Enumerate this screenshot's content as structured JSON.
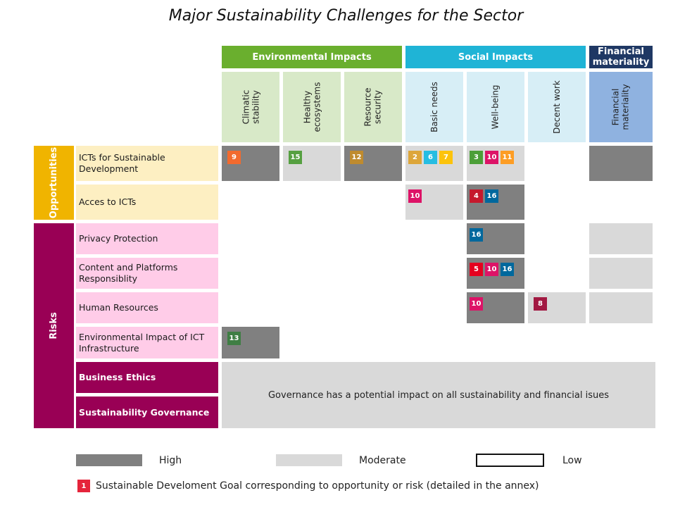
{
  "title": "Major Sustainability Challenges for the Sector",
  "colors": {
    "high": "#808080",
    "moderate": "#d9d9d9",
    "environmental": "#6aaf2e",
    "environmental_col": "#d8e9c8",
    "social": "#1fb4d6",
    "social_col": "#d7eef6",
    "financial": "#1f3864",
    "financial_col": "#8fb2e0",
    "opportunities": "#f0b400",
    "opportunities_row": "#fdefc2",
    "risks": "#990055",
    "risks_row": "#ffcce8"
  },
  "groups": {
    "environmental": "Environmental Impacts",
    "social": "Social Impacts",
    "financial": "Financial materiality"
  },
  "columns": {
    "climatic": "Climatic\nstability",
    "ecosystems": "Healthy\necosystems",
    "resource": "Resource\nsecurity",
    "basic": "Basic needs",
    "wellbeing": "Well-being",
    "decent": "Decent work",
    "financial": "Financial\nmateriality"
  },
  "sides": {
    "opportunities": "Opportunities",
    "risks": "Risks"
  },
  "rows": {
    "icts": "ICTs for Sustainable Development",
    "access": "Acces to ICTs",
    "privacy": "Privacy Protection",
    "content": "Content and Platforms Responsiblity",
    "hr": "Human Resources",
    "env_ict": "Environmental Impact of ICT Infrastructure",
    "ethics": "Business Ethics",
    "governance": "Sustainability Governance"
  },
  "sdg": {
    "icts_climatic": [
      "9"
    ],
    "icts_ecosystems": [
      "15"
    ],
    "icts_resource": [
      "12"
    ],
    "icts_basic": [
      "2",
      "6",
      "7"
    ],
    "icts_wellbeing": [
      "3",
      "10",
      "11"
    ],
    "access_basic": [
      "10"
    ],
    "access_wellbeing": [
      "4",
      "16"
    ],
    "privacy_wellbeing": [
      "16"
    ],
    "content_wellbeing": [
      "5",
      "10",
      "16"
    ],
    "hr_wellbeing": [
      "10"
    ],
    "hr_decent": [
      "8"
    ],
    "envict_climatic": [
      "13"
    ]
  },
  "governance_note": "Governance has a potential impact on all sustainability and financial isues",
  "legend": {
    "high": "High",
    "moderate": "Moderate",
    "low": "Low",
    "sdg_sample": "1",
    "sdg_text": "Sustainable Develoment Goal corresponding to opportunity or risk (detailed in the annex)"
  }
}
